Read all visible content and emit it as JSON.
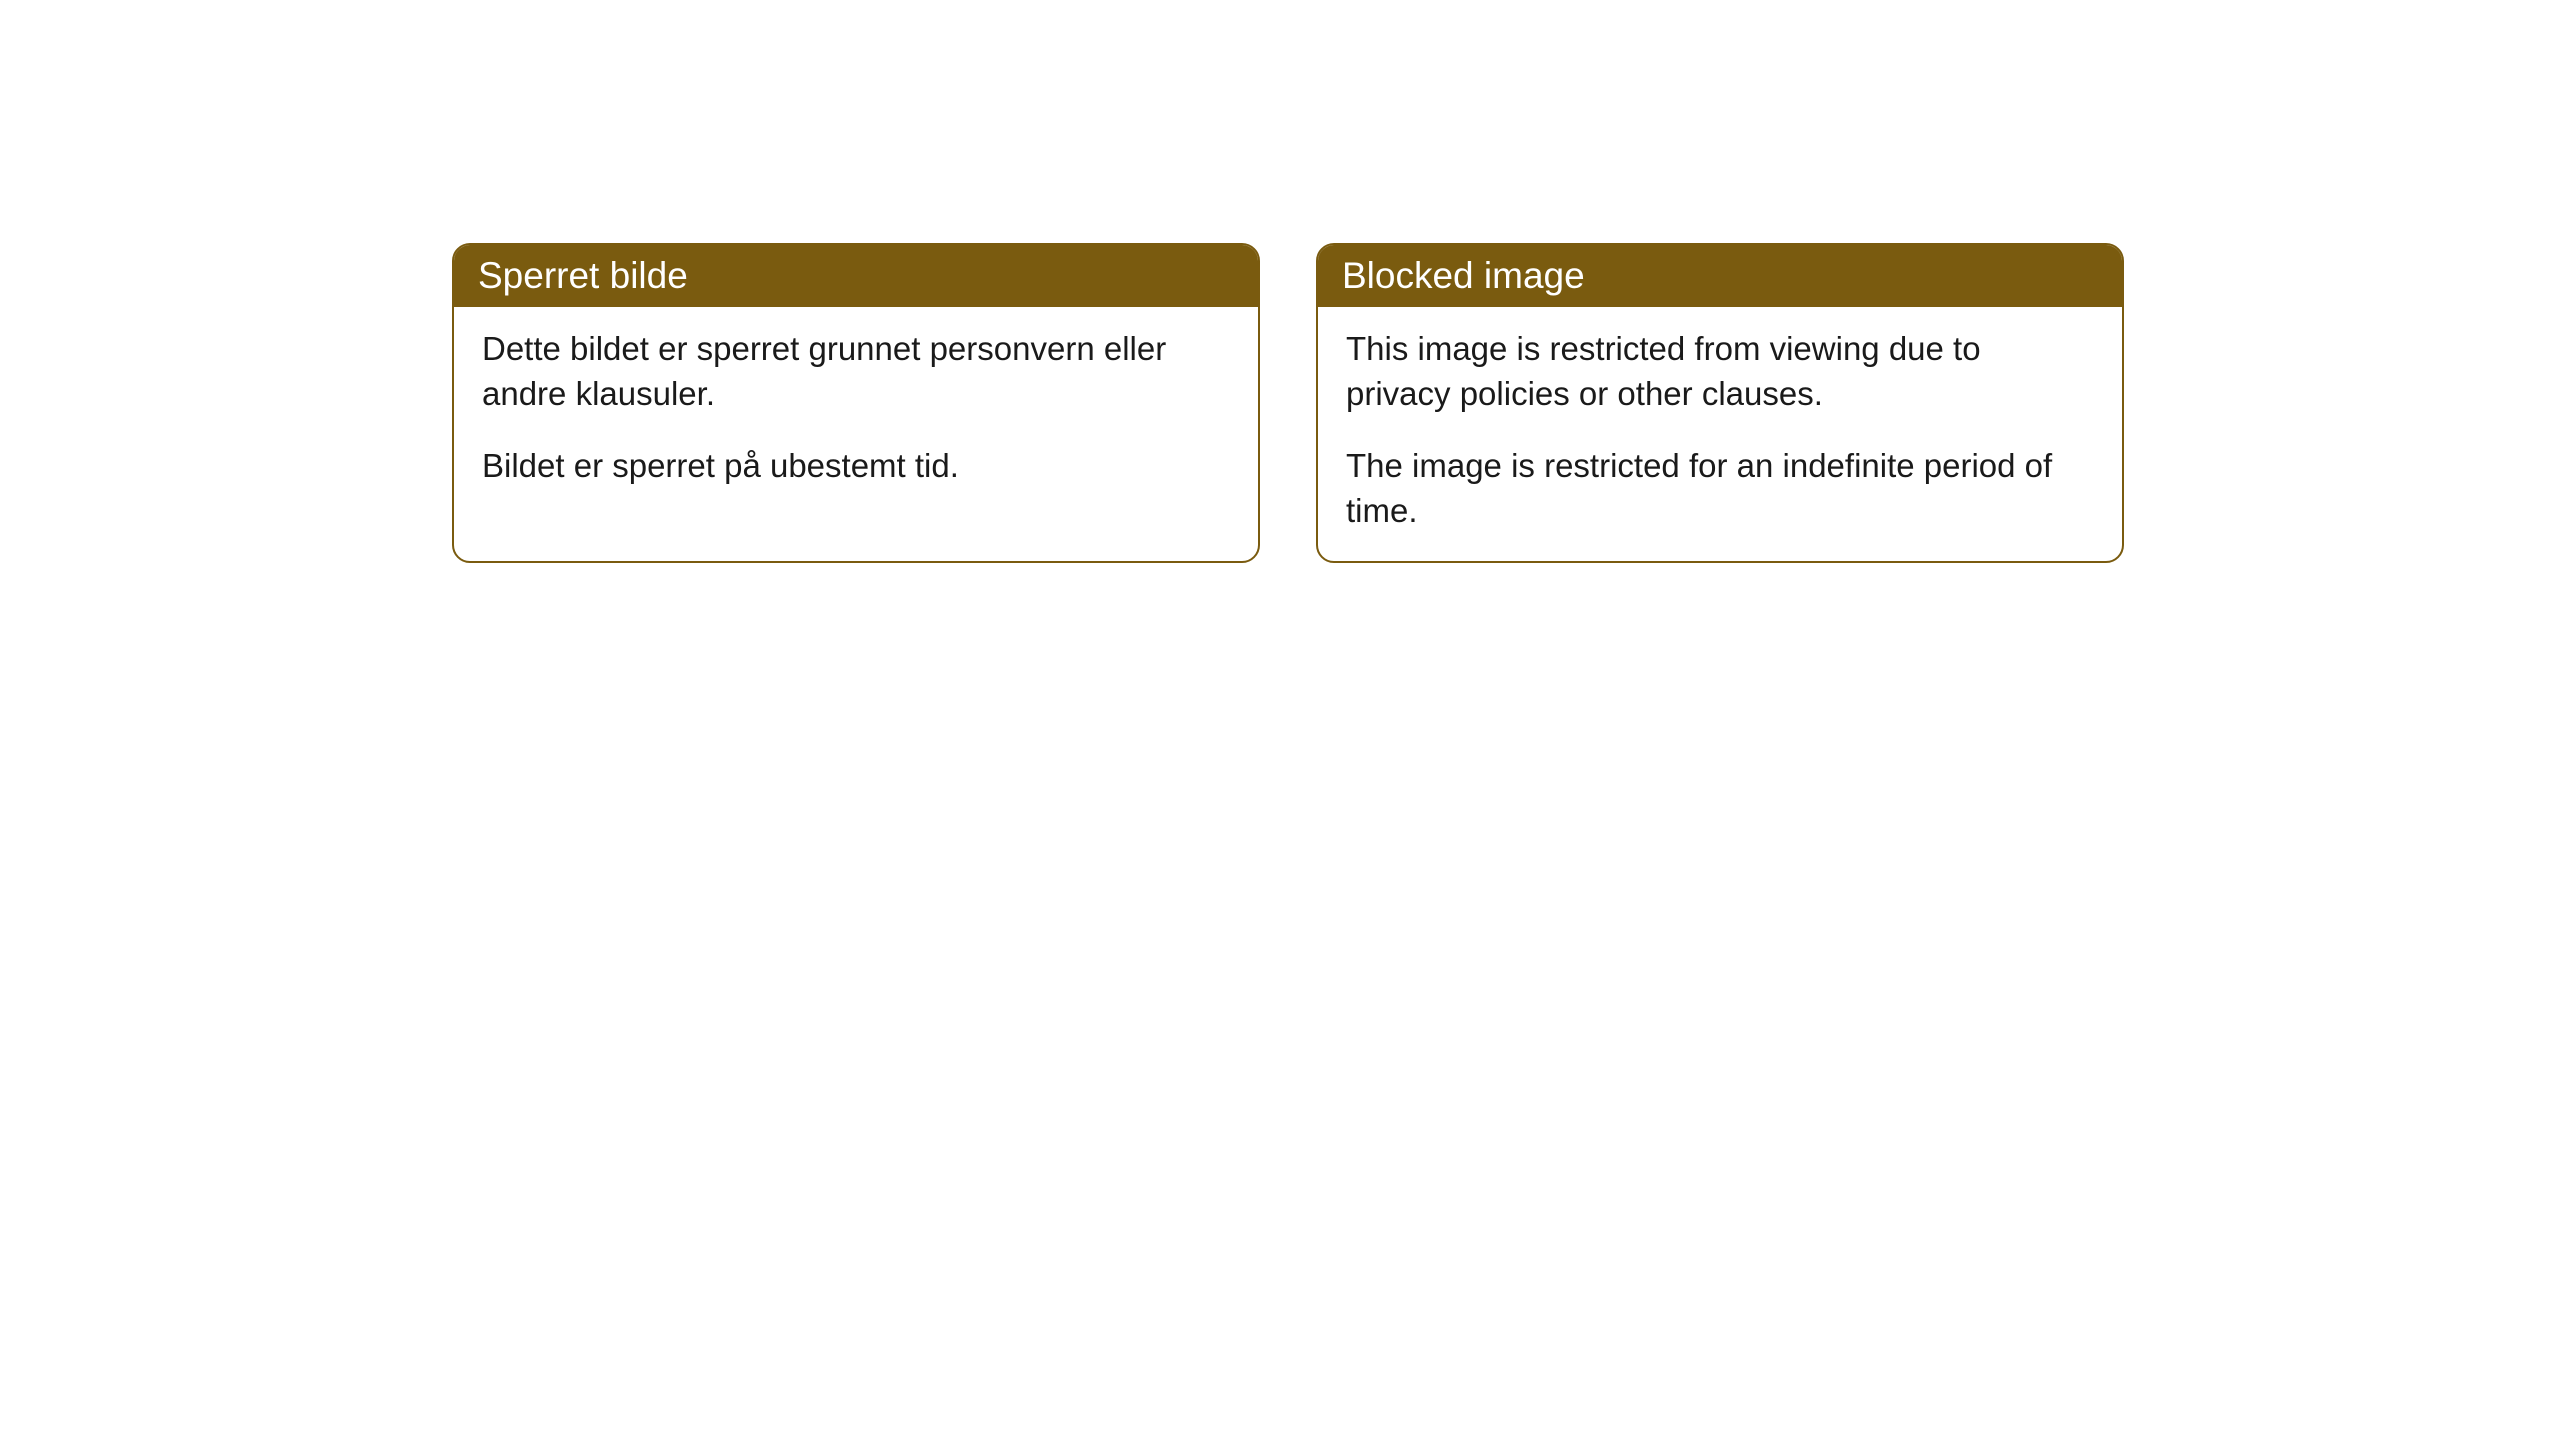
{
  "cards": [
    {
      "title": "Sperret bilde",
      "paragraph1": "Dette bildet er sperret grunnet personvern eller andre klausuler.",
      "paragraph2": "Bildet er sperret på ubestemt tid."
    },
    {
      "title": "Blocked image",
      "paragraph1": "This image is restricted from viewing due to privacy policies or other clauses.",
      "paragraph2": "The image is restricted for an indefinite period of time."
    }
  ],
  "styling": {
    "header_background": "#7a5b0f",
    "header_text_color": "#ffffff",
    "border_color": "#7a5b0f",
    "body_text_color": "#1a1a1a",
    "card_background": "#ffffff",
    "page_background": "#ffffff",
    "border_radius": 18,
    "header_fontsize": 37,
    "body_fontsize": 33
  }
}
